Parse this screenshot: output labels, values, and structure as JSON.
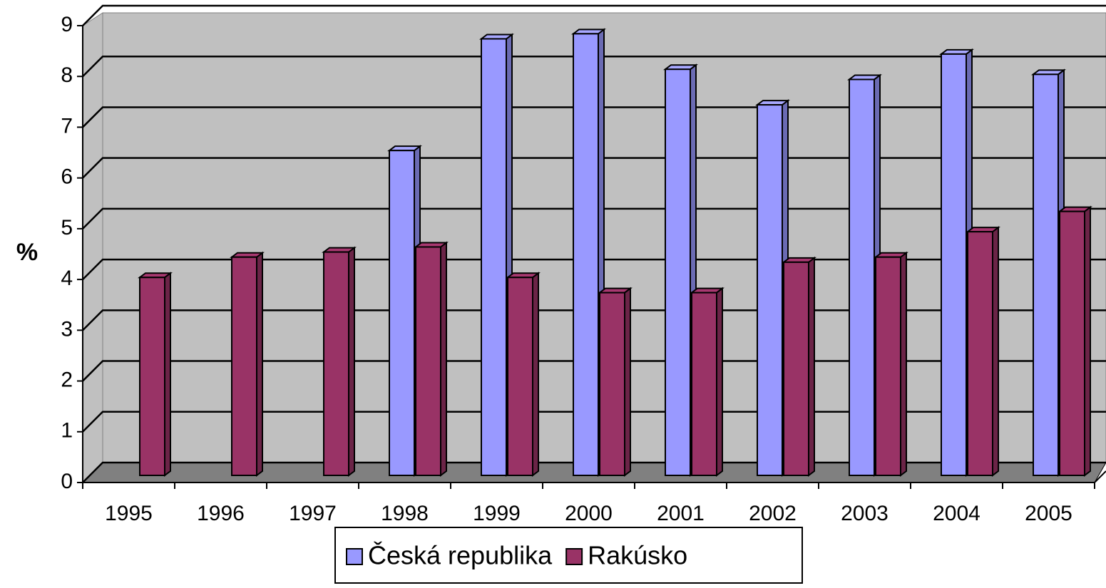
{
  "chart_data": {
    "type": "bar3d",
    "ylabel": "%",
    "categories": [
      "1995",
      "1996",
      "1997",
      "1998",
      "1999",
      "2000",
      "2001",
      "2002",
      "2003",
      "2004",
      "2005"
    ],
    "series": [
      {
        "name": "Česká republika",
        "color": "#9999ff",
        "values": [
          null,
          null,
          null,
          6.4,
          8.6,
          8.7,
          8.0,
          7.3,
          7.8,
          8.3,
          7.9
        ]
      },
      {
        "name": "Rakúsko",
        "color": "#993366",
        "values": [
          3.9,
          4.3,
          4.4,
          4.5,
          3.9,
          3.6,
          3.6,
          4.2,
          4.3,
          4.8,
          5.2
        ]
      }
    ],
    "ylim": [
      0,
      9
    ],
    "yticks": [
      0,
      1,
      2,
      3,
      4,
      5,
      6,
      7,
      8,
      9
    ],
    "grid": true,
    "legend": "bottom"
  }
}
